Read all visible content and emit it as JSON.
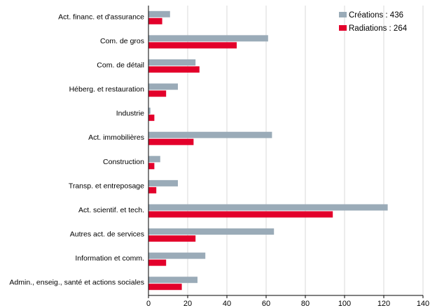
{
  "chart_data": {
    "type": "bar",
    "orientation": "horizontal",
    "categories": [
      "Act. financ. et d'assurance",
      "Com. de gros",
      "Com. de détail",
      "Héberg. et restauration",
      "Industrie",
      "Act. immobilières",
      "Construction",
      "Transp. et entreposage",
      "Act. scientif. et tech.",
      "Autres act. de services",
      "Information et comm.",
      "Admin., enseig., santé et actions sociales"
    ],
    "series": [
      {
        "name": "Créations : 436",
        "color": "#9aabb8",
        "values": [
          11,
          61,
          24,
          15,
          1,
          63,
          6,
          15,
          122,
          64,
          29,
          25
        ]
      },
      {
        "name": "Radiations : 264",
        "color": "#e3002b",
        "values": [
          7,
          45,
          26,
          9,
          3,
          23,
          3,
          4,
          94,
          24,
          9,
          17
        ]
      }
    ],
    "xlim": [
      0,
      140
    ],
    "xticks": [
      "0",
      "20",
      "40",
      "60",
      "80",
      "100",
      "120",
      "140"
    ],
    "grid": true,
    "legend_position": "top-right"
  }
}
